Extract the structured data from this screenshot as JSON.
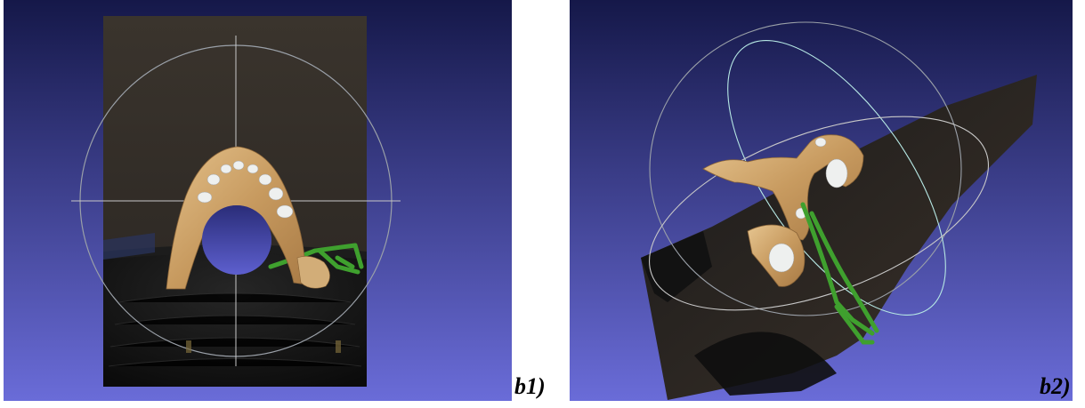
{
  "figures": [
    {
      "id": "b1",
      "caption": "b1)",
      "scene": "front-view-mandible-scan",
      "colors": {
        "bg_top": "#151849",
        "bg_bottom": "#6a6cd8",
        "backdrop": "#3b352f",
        "floor": "#141414",
        "bone": "#caa16a",
        "tooth": "#eef0ef",
        "support": "#3fa02e"
      }
    },
    {
      "id": "b2",
      "caption": "b2)",
      "scene": "rotated-view-mandible-scan",
      "colors": {
        "bg_top": "#151849",
        "bg_bottom": "#6a6cd8",
        "backdrop": "#2a2522",
        "bone": "#caa16a",
        "tooth": "#eef0ef",
        "support": "#3fa02e"
      }
    }
  ]
}
